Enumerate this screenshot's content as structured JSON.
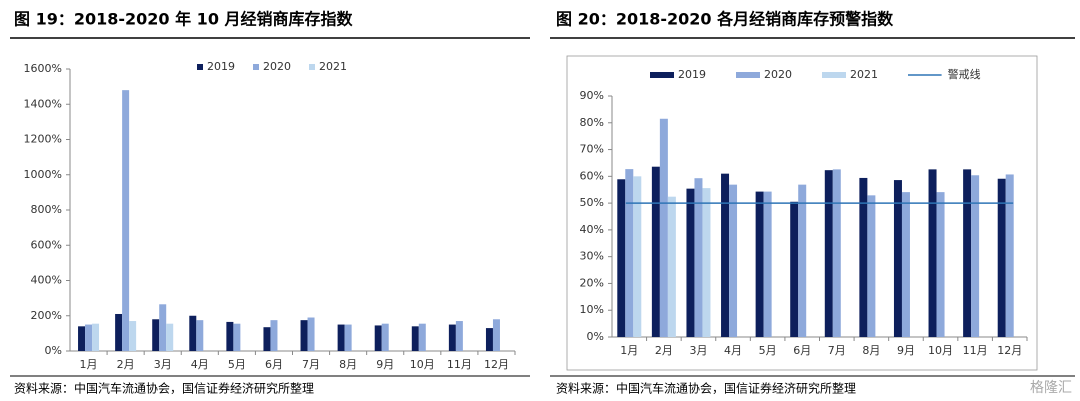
{
  "chart_data": [
    {
      "type": "bar",
      "title": "图 19：2018-2020 年 10 月经销商库存指数",
      "source": "资料来源：中国汽车流通协会，国信证券经济研究所整理",
      "categories": [
        "1月",
        "2月",
        "3月",
        "4月",
        "5月",
        "6月",
        "7月",
        "8月",
        "9月",
        "10月",
        "11月",
        "12月"
      ],
      "series": [
        {
          "name": "2019",
          "color": "#0d1f5c",
          "values": [
            140,
            210,
            180,
            200,
            165,
            135,
            175,
            150,
            145,
            140,
            150,
            130
          ]
        },
        {
          "name": "2020",
          "color": "#8ea9db",
          "values": [
            150,
            1480,
            265,
            175,
            155,
            175,
            190,
            150,
            155,
            155,
            170,
            180
          ]
        },
        {
          "name": "2021",
          "color": "#bdd7ee",
          "values": [
            155,
            170,
            155,
            null,
            null,
            null,
            null,
            null,
            null,
            null,
            null,
            null
          ]
        }
      ],
      "ylim": [
        0,
        1600
      ],
      "yticks": [
        {
          "value": 0,
          "label": "0%"
        },
        {
          "value": 200,
          "label": "200%"
        },
        {
          "value": 400,
          "label": "400%"
        },
        {
          "value": 600,
          "label": "600%"
        },
        {
          "value": 800,
          "label": "800%"
        },
        {
          "value": 1000,
          "label": "1000%"
        },
        {
          "value": 1200,
          "label": "1200%"
        },
        {
          "value": 1400,
          "label": "1400%"
        },
        {
          "value": 1600,
          "label": "1600%"
        }
      ],
      "grid": false,
      "legend": "top"
    },
    {
      "type": "bar",
      "title": "图 20：2018-2020 各月经销商库存预警指数",
      "source": "资料来源：中国汽车流通协会，国信证券经济研究所整理",
      "categories": [
        "1月",
        "2月",
        "3月",
        "4月",
        "5月",
        "6月",
        "7月",
        "8月",
        "9月",
        "10月",
        "11月",
        "12月"
      ],
      "series": [
        {
          "name": "2019",
          "color": "#0d1f5c",
          "values": [
            58.9,
            63.6,
            55.4,
            61.0,
            54.3,
            50.5,
            62.3,
            59.4,
            58.6,
            62.6,
            62.6,
            59.1
          ]
        },
        {
          "name": "2020",
          "color": "#8ea9db",
          "values": [
            62.7,
            81.5,
            59.3,
            56.9,
            54.3,
            56.9,
            62.6,
            52.9,
            54.1,
            54.1,
            60.4,
            60.7
          ]
        },
        {
          "name": "2021",
          "color": "#bdd7ee",
          "values": [
            60.0,
            52.4,
            55.6,
            null,
            null,
            null,
            null,
            null,
            null,
            null,
            null,
            null
          ]
        }
      ],
      "threshold": {
        "name": "警戒线",
        "value": 50,
        "color": "#2e75b6"
      },
      "ylim": [
        0,
        90
      ],
      "yticks": [
        {
          "value": 0,
          "label": "0%"
        },
        {
          "value": 10,
          "label": "10%"
        },
        {
          "value": 20,
          "label": "20%"
        },
        {
          "value": 30,
          "label": "30%"
        },
        {
          "value": 40,
          "label": "40%"
        },
        {
          "value": 50,
          "label": "50%"
        },
        {
          "value": 60,
          "label": "60%"
        },
        {
          "value": 70,
          "label": "70%"
        },
        {
          "value": 80,
          "label": "80%"
        },
        {
          "value": 90,
          "label": "90%"
        }
      ],
      "grid": false,
      "legend": "top"
    }
  ],
  "watermark": "格隆汇"
}
